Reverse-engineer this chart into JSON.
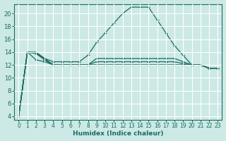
{
  "xlabel": "Humidex (Indice chaleur)",
  "xlim": [
    -0.5,
    23.5
  ],
  "ylim": [
    3.5,
    21.5
  ],
  "yticks": [
    4,
    6,
    8,
    10,
    12,
    14,
    16,
    18,
    20
  ],
  "xticks": [
    0,
    1,
    2,
    3,
    4,
    5,
    6,
    7,
    8,
    9,
    10,
    11,
    12,
    13,
    14,
    15,
    16,
    17,
    18,
    19,
    20,
    21,
    22,
    23
  ],
  "background_color": "#cce9e5",
  "line_color": "#1a6b63",
  "grid_color": "#ffffff",
  "lines": [
    [
      4,
      14,
      14,
      13,
      12.5,
      12.5,
      12.5,
      12.5,
      13.5,
      15.5,
      17,
      18.5,
      20,
      21,
      21,
      21,
      19,
      17,
      15,
      13.5,
      12,
      12,
      11.5,
      11.5
    ],
    [
      4,
      14,
      13.8,
      13,
      12,
      12,
      12,
      12,
      12,
      13,
      13,
      13,
      13,
      13,
      13,
      13,
      13,
      13,
      13,
      12.5,
      12,
      12,
      11.5,
      11.5
    ],
    [
      4,
      14,
      13.8,
      12.8,
      12,
      12,
      12,
      12,
      12,
      12.5,
      12.5,
      12.5,
      12.5,
      12.5,
      12.5,
      12.5,
      12.5,
      12.5,
      12.5,
      12.2,
      12,
      12,
      11.5,
      11.5
    ],
    [
      4,
      14,
      12.8,
      12.5,
      12,
      12,
      12,
      12,
      12,
      12,
      12,
      12,
      12,
      12,
      12,
      12,
      12,
      12,
      12,
      12,
      12,
      12,
      11.5,
      11.5
    ],
    [
      4,
      14,
      13.8,
      12.8,
      12,
      12,
      12,
      12,
      12,
      12,
      12,
      12,
      12,
      12,
      12,
      12,
      12,
      12,
      12,
      12,
      12,
      12,
      11.5,
      11.5
    ]
  ]
}
